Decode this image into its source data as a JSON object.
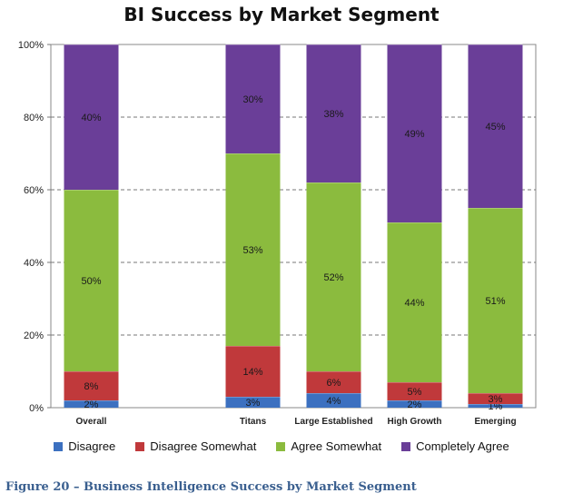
{
  "caption": "Figure 20 – Business Intelligence Success by Market Segment",
  "chart_data": {
    "type": "bar",
    "stacked": true,
    "title": "BI Success by Market Segment",
    "categories": [
      "Overall",
      "",
      "Titans",
      "Large Established",
      "High Growth",
      "Emerging"
    ],
    "ylim": [
      0,
      100
    ],
    "yticks": [
      "0%",
      "20%",
      "40%",
      "60%",
      "80%",
      "100%"
    ],
    "ytick_values": [
      0,
      20,
      40,
      60,
      80,
      100
    ],
    "grid": true,
    "legend_position": "bottom",
    "series": [
      {
        "name": "Disagree",
        "color": "#3c70c0",
        "values": [
          2,
          null,
          3,
          4,
          2,
          1
        ],
        "labels": [
          "2%",
          "",
          "3%",
          "4%",
          "2%",
          "1%"
        ]
      },
      {
        "name": "Disagree Somewhat",
        "color": "#c0393b",
        "values": [
          8,
          null,
          14,
          6,
          5,
          3
        ],
        "labels": [
          "8%",
          "",
          "14%",
          "6%",
          "5%",
          "3%"
        ]
      },
      {
        "name": "Agree Somewhat",
        "color": "#8bbb3e",
        "values": [
          50,
          null,
          53,
          52,
          44,
          51
        ],
        "labels": [
          "50%",
          "",
          "53%",
          "52%",
          "44%",
          "51%"
        ]
      },
      {
        "name": "Completely Agree",
        "color": "#6a3e98",
        "values": [
          40,
          null,
          30,
          38,
          49,
          45
        ],
        "labels": [
          "40%",
          "",
          "30%",
          "38%",
          "49%",
          "45%"
        ]
      }
    ]
  }
}
